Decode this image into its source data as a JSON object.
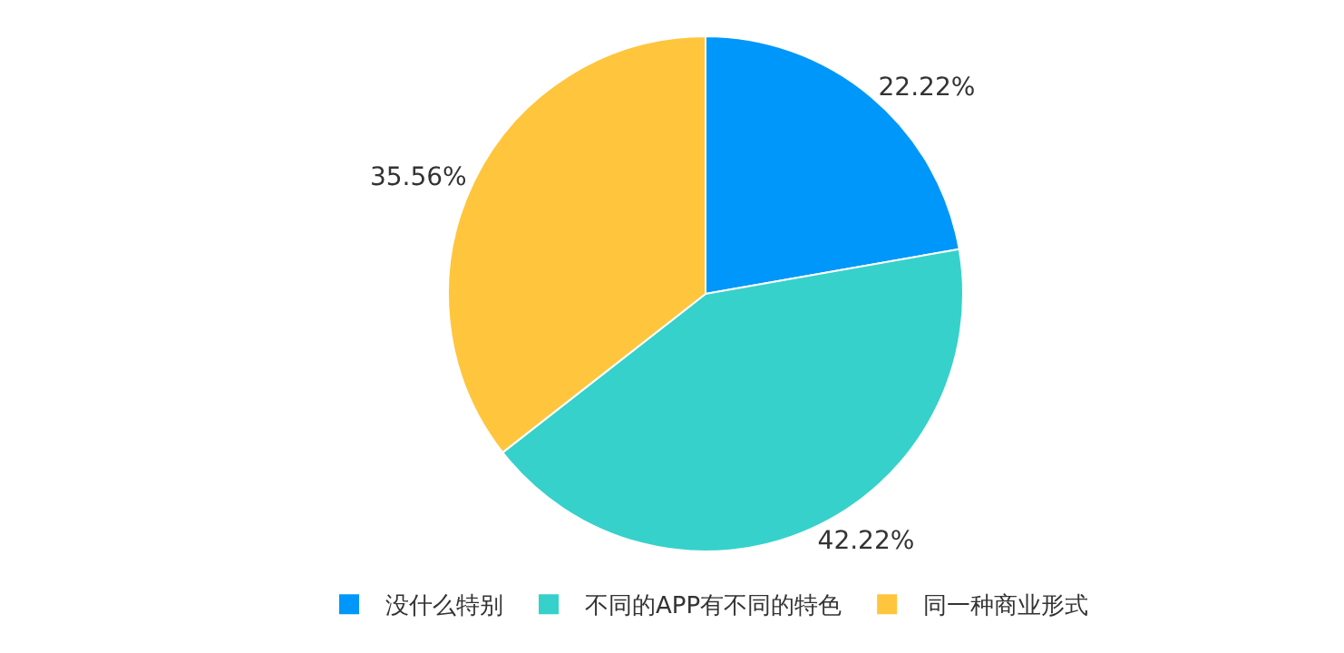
{
  "chart_data": {
    "type": "pie",
    "categories": [
      "没什么特别",
      "不同的APP有不同的特色",
      "同一种商业形式"
    ],
    "values": [
      22.22,
      42.22,
      35.56
    ],
    "colors": [
      "#0097fb",
      "#36d1cb",
      "#ffc53d"
    ],
    "value_labels": [
      "22.22%",
      "42.22%",
      "35.56%"
    ],
    "legend": "bottom"
  }
}
